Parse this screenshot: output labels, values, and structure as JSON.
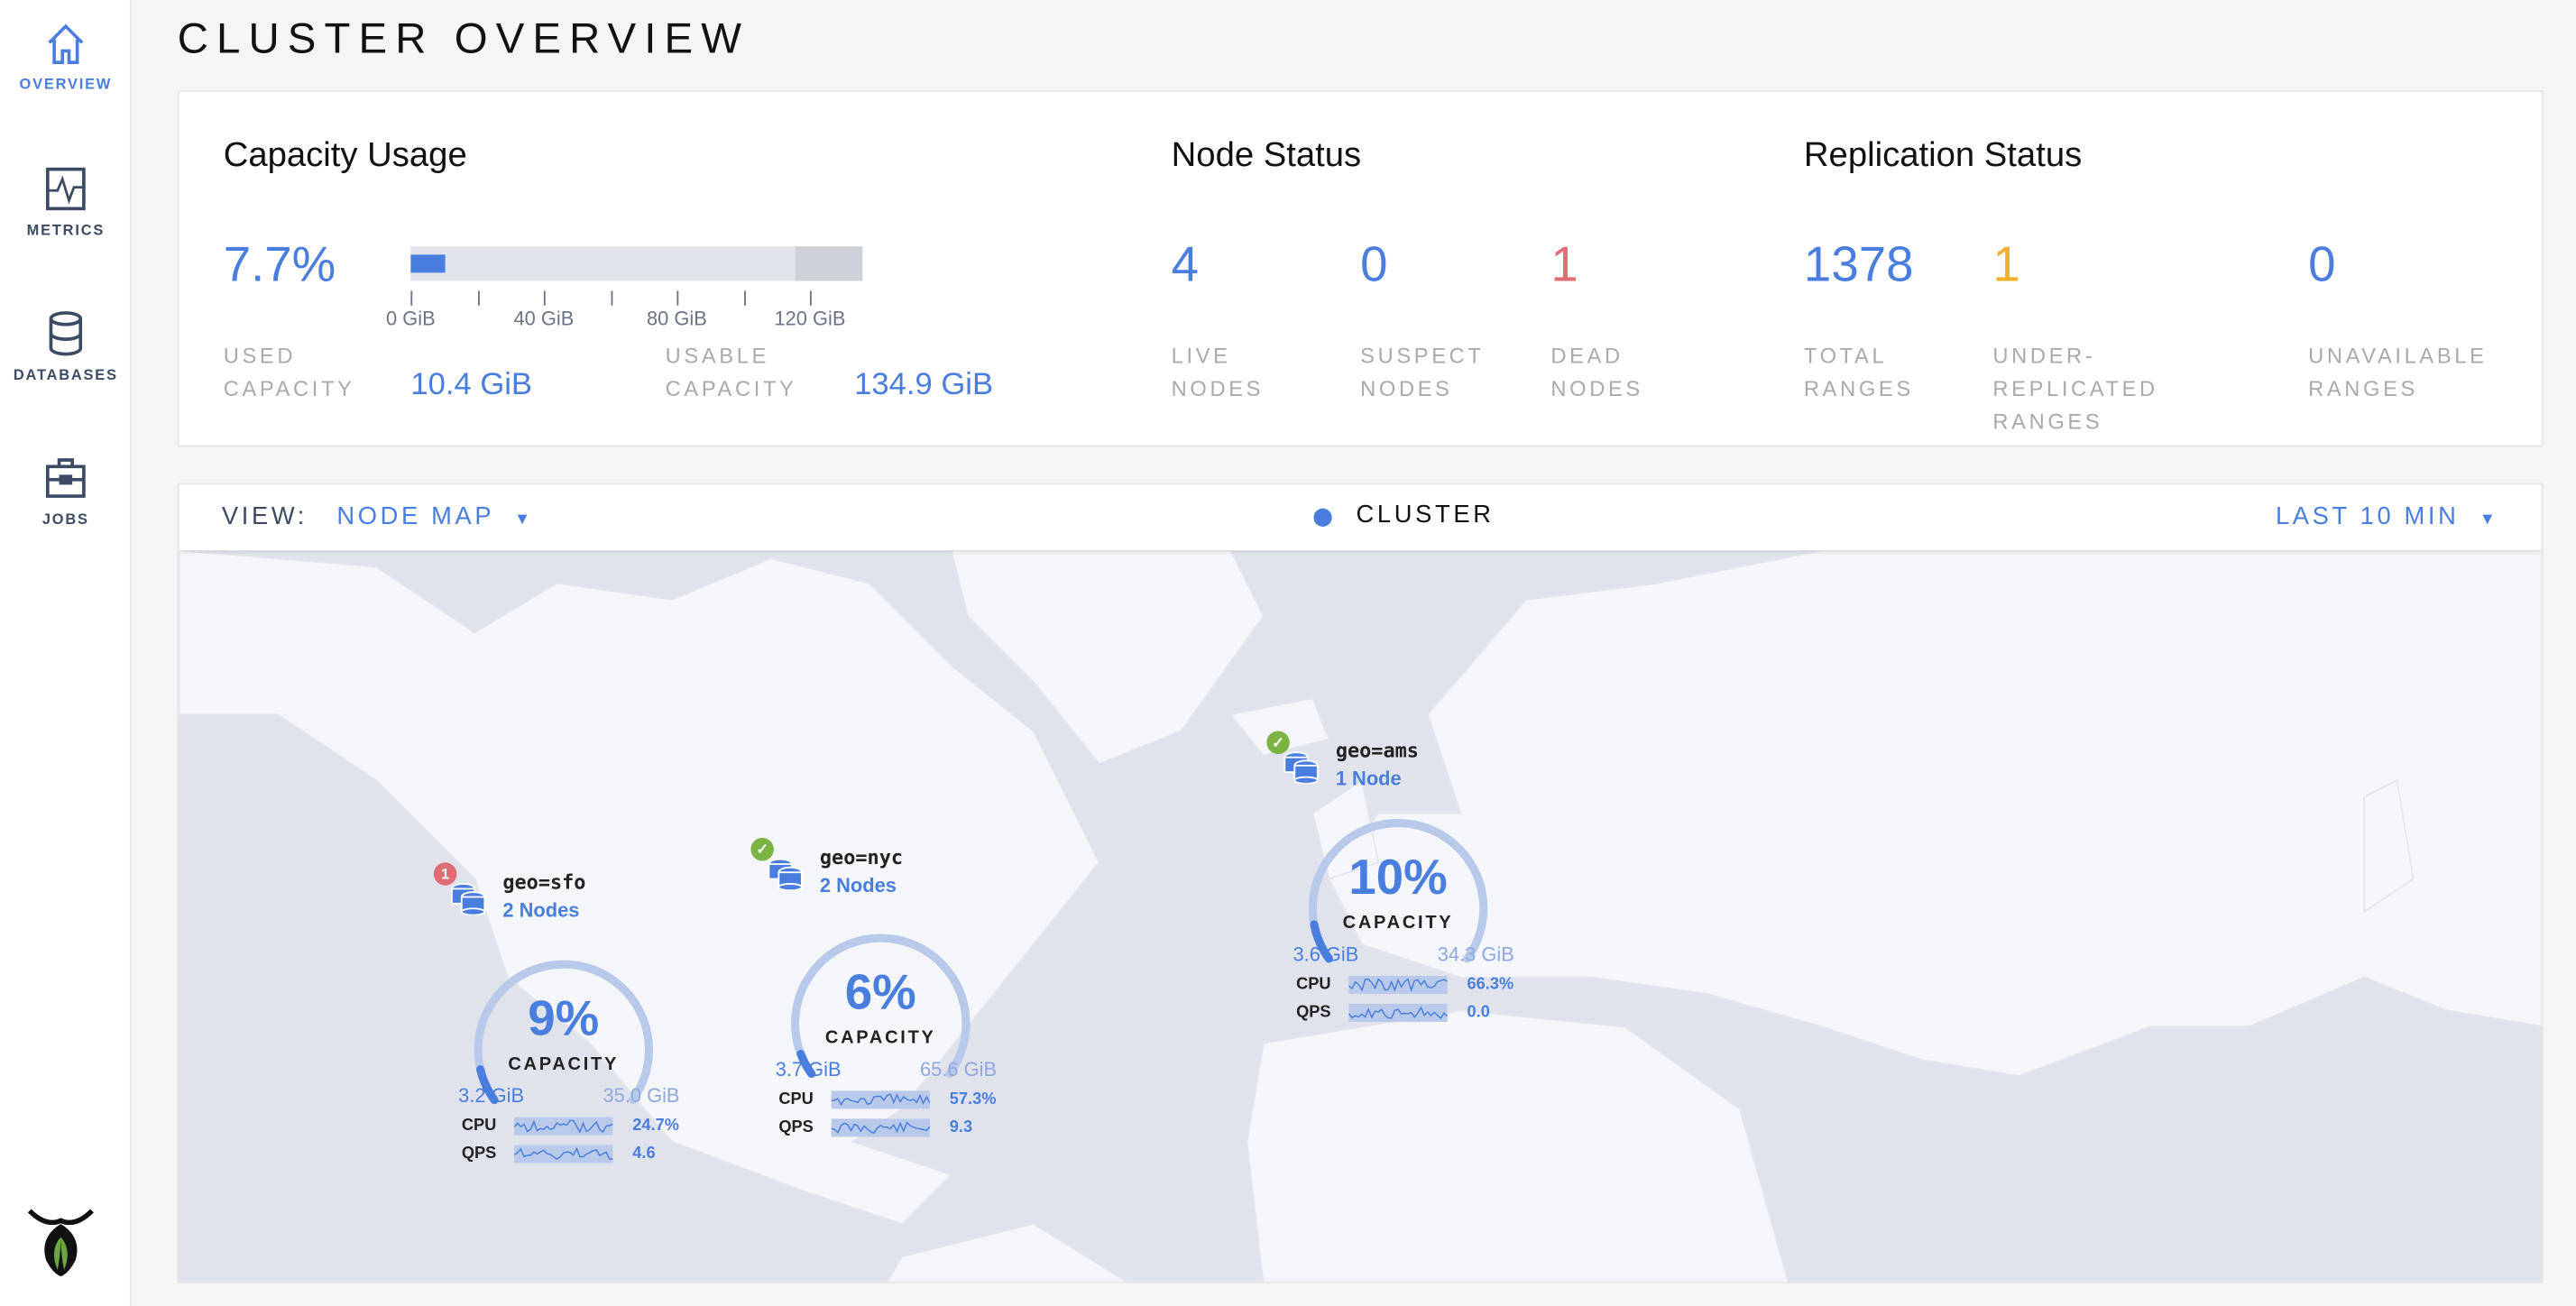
{
  "sidebar": {
    "items": [
      {
        "label": "OVERVIEW",
        "icon": "home-icon",
        "active": true
      },
      {
        "label": "METRICS",
        "icon": "metrics-icon"
      },
      {
        "label": "DATABASES",
        "icon": "database-icon"
      },
      {
        "label": "JOBS",
        "icon": "briefcase-icon"
      }
    ],
    "logo": "cockroach-logo"
  },
  "page": {
    "title": "CLUSTER OVERVIEW"
  },
  "capacity": {
    "title": "Capacity Usage",
    "percent": "7.7%",
    "used_label": "USED CAPACITY",
    "used_value": "10.4 GiB",
    "usable_label": "USABLE CAPACITY",
    "usable_value": "134.9 GiB",
    "ticks": [
      "0 GiB",
      "40 GiB",
      "80 GiB",
      "120 GiB"
    ],
    "used_gib": 10.4,
    "usable_gib": 134.9
  },
  "node_status": {
    "title": "Node Status",
    "live": "4",
    "live_label": "LIVE NODES",
    "suspect": "0",
    "suspect_label": "SUSPECT NODES",
    "dead": "1",
    "dead_label": "DEAD NODES"
  },
  "replication": {
    "title": "Replication Status",
    "total": "1378",
    "total_label": "TOTAL RANGES",
    "under": "1",
    "under_label": "UNDER-REPLICATED RANGES",
    "unavailable": "0",
    "unavailable_label": "UNAVAILABLE RANGES"
  },
  "map_panel": {
    "view_label": "VIEW:",
    "view_value": "NODE MAP",
    "location": "CLUSTER",
    "time_range": "LAST 10 MIN"
  },
  "clusters": [
    {
      "name": "geo=sfo",
      "nodes": "2 Nodes",
      "status": "dead",
      "badge": "1",
      "percent": "9%",
      "capacity_label": "CAPACITY",
      "used": "3.2 GiB",
      "total": "35.0 GiB",
      "fraction": 0.09,
      "cpu_label": "CPU",
      "cpu": "24.7%",
      "qps_label": "QPS",
      "qps": "4.6"
    },
    {
      "name": "geo=nyc",
      "nodes": "2 Nodes",
      "status": "healthy",
      "badge": "✓",
      "percent": "6%",
      "capacity_label": "CAPACITY",
      "used": "3.7 GiB",
      "total": "65.6 GiB",
      "fraction": 0.06,
      "cpu_label": "CPU",
      "cpu": "57.3%",
      "qps_label": "QPS",
      "qps": "9.3"
    },
    {
      "name": "geo=ams",
      "nodes": "1 Node",
      "status": "healthy",
      "badge": "✓",
      "percent": "10%",
      "capacity_label": "CAPACITY",
      "used": "3.6 GiB",
      "total": "34.3 GiB",
      "fraction": 0.1,
      "cpu_label": "CPU",
      "cpu": "66.3%",
      "qps_label": "QPS",
      "qps": "0.0"
    }
  ],
  "colors": {
    "accent": "#4a7ede",
    "dead": "#e06c75",
    "warning": "#f2b02b",
    "healthy": "#7cb342",
    "map_bg": "#e0e3ec",
    "land": "#f5f6f9"
  }
}
